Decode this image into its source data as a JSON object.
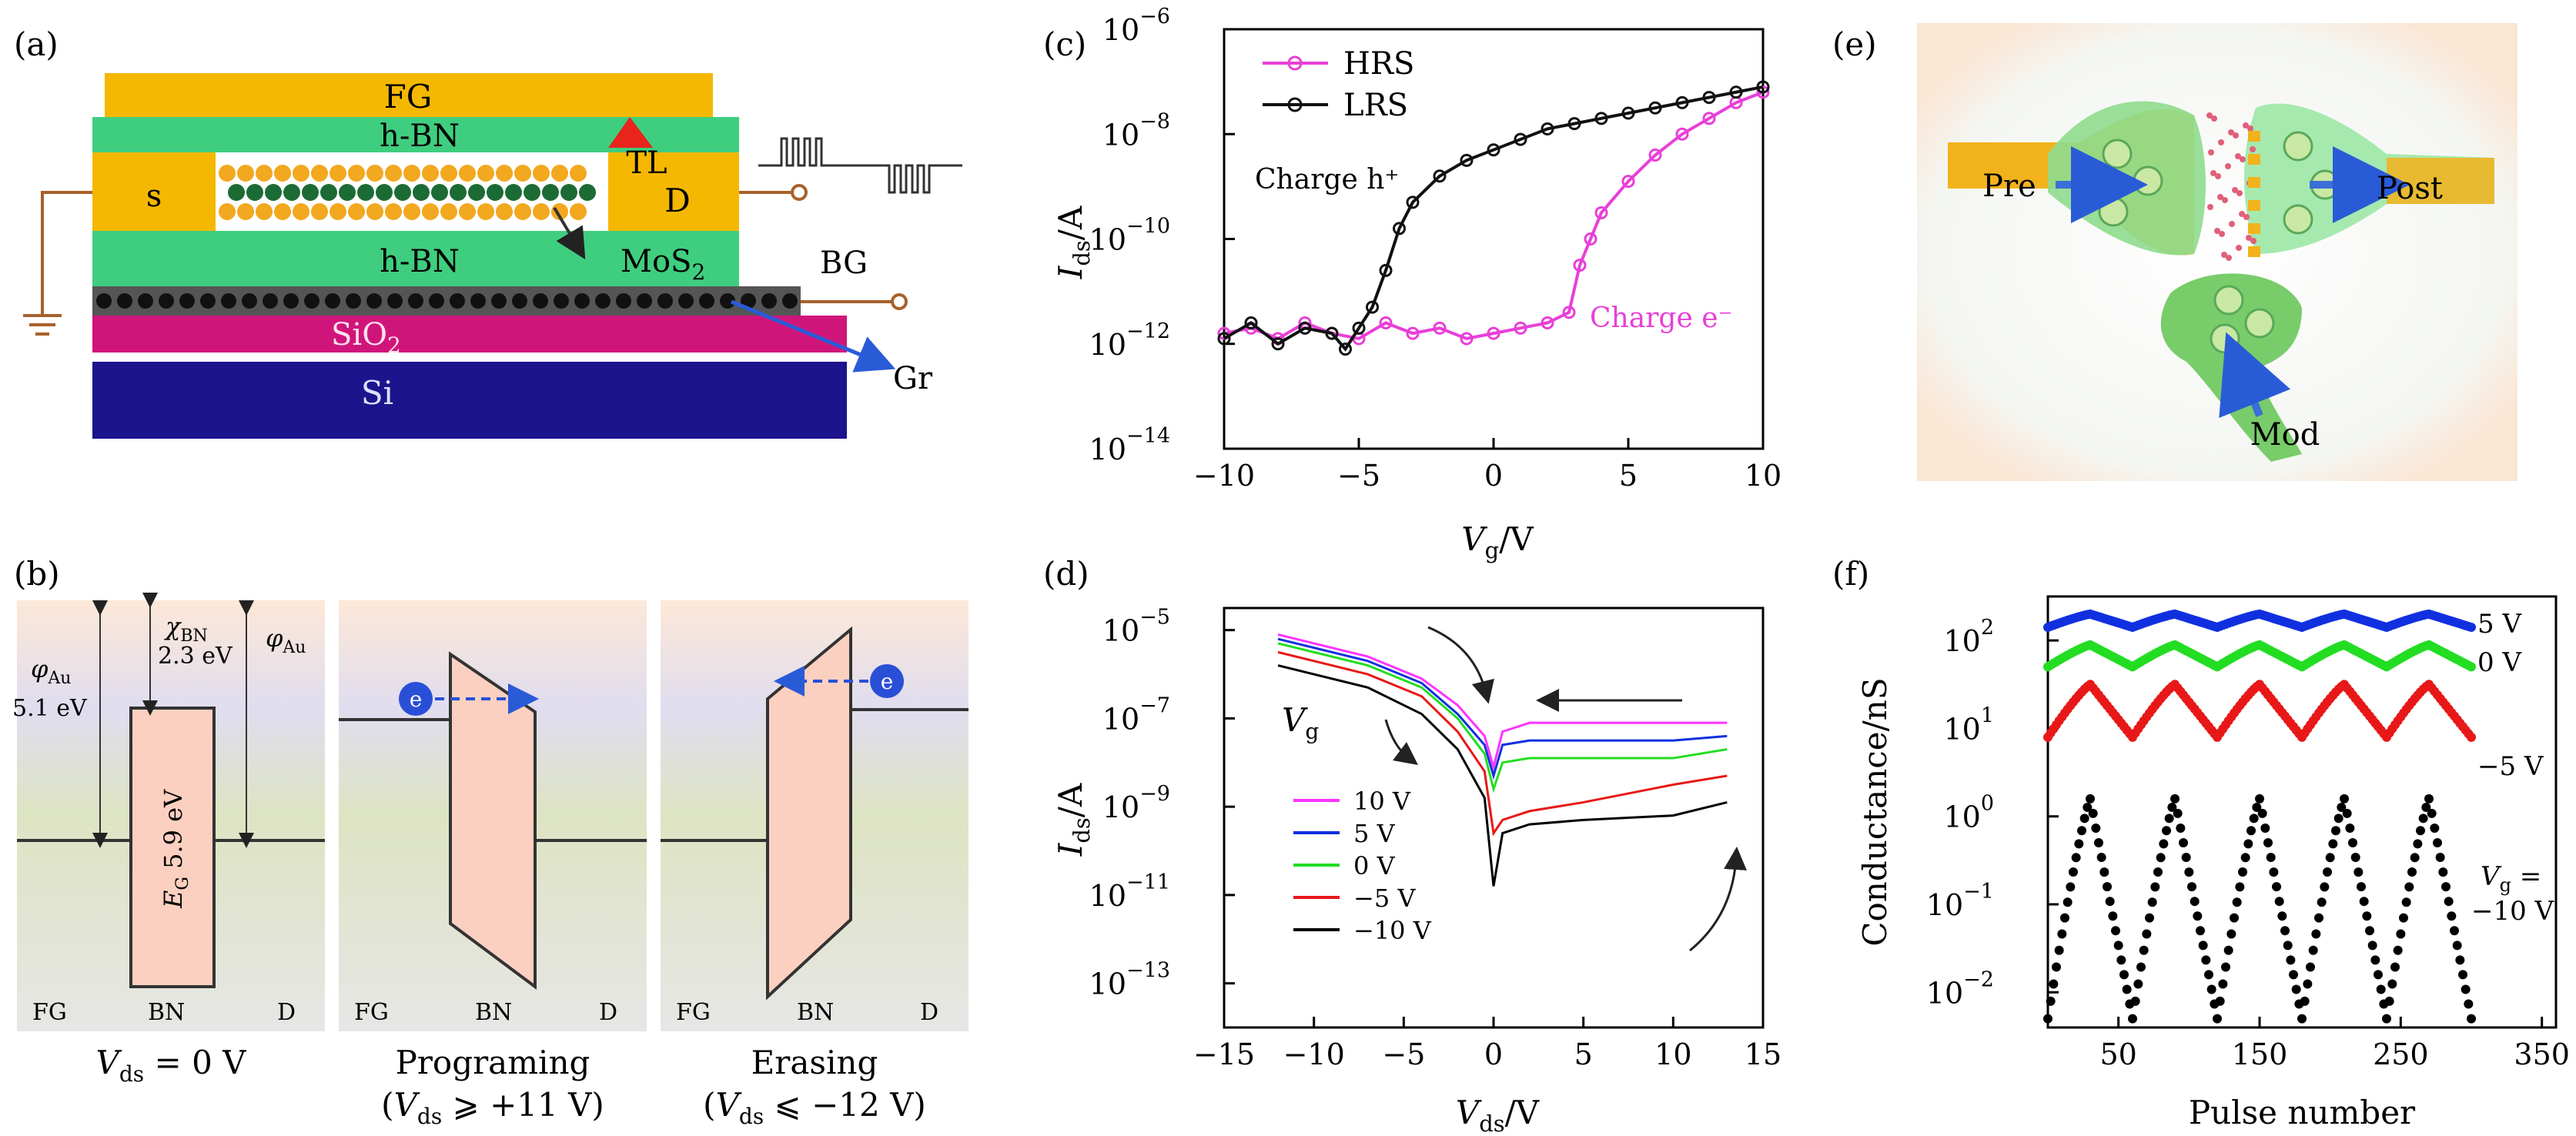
{
  "panel_labels": {
    "a": "(a)",
    "b": "(b)",
    "c": "(c)",
    "d": "(d)",
    "e": "(e)",
    "f": "(f)"
  },
  "panel_a": {
    "fg": "FG",
    "hbn_top": "h-BN",
    "hbn_bottom": "h-BN",
    "source": "s",
    "drain": "D",
    "tl": "TL",
    "mos2": "MoS",
    "mos2_sub": "2",
    "bg": "BG",
    "sio2": "SiO",
    "sio2_sub": "2",
    "si": "Si",
    "gr": "Gr"
  },
  "panel_b": {
    "phi_au": "φ",
    "phi_au_sub": "Au",
    "work_fn_value": "5.1 eV",
    "chi_bn": "χ",
    "chi_bn_sub": "BN",
    "chi_value": "2.3 eV",
    "bandgap": "E",
    "bandgap_sub": "G",
    "bandgap_value": " 5.9 eV",
    "electron": "e",
    "fg": "FG",
    "bn": "BN",
    "d": "D",
    "caption1_v": "V",
    "caption1_sub": "ds",
    "caption1_rest": " = 0 V",
    "caption2_title": "Programing",
    "caption2_line2_a": "(",
    "caption2_line2_v": "V",
    "caption2_line2_sub": "ds",
    "caption2_line2_rest": " ⩾ +11 V)",
    "caption3_title": "Erasing",
    "caption3_line2_rest": " ⩽ −12 V)"
  },
  "panel_e": {
    "pre": "Pre",
    "post": "Post",
    "mod": "Mod"
  },
  "colors": {
    "hrs": "#e83fd8",
    "lrs": "#111111",
    "v10": "#ff33ff",
    "v5": "#1030e0",
    "v0": "#22dd22",
    "vm5": "#e81818",
    "vm10": "#000000",
    "fg_gold": "#f5b800",
    "hbn_green": "#3fce7f",
    "sio2_pink": "#d0157a",
    "si_blue": "#1c148c"
  },
  "chart_data": [
    {
      "panel": "c",
      "type": "line",
      "xlabel": "V",
      "xlabel_sub": "g",
      "xlabel_unit": "/V",
      "ylabel": "I",
      "ylabel_sub": "ds",
      "ylabel_unit": "/A",
      "xlim": [
        -10,
        10
      ],
      "ylim_log10": [
        -14,
        -6
      ],
      "log_y": true,
      "xticks": [
        "−10",
        "−5",
        "0",
        "5",
        "10"
      ],
      "yticks": [
        "10",
        "10",
        "10",
        "10",
        "10"
      ],
      "ytick_exps": [
        "−14",
        "−12",
        "−10",
        "−8",
        "−6"
      ],
      "legend_placement": "top-left",
      "annotations": [
        "Charge h⁺",
        "Charge e⁻"
      ],
      "series": [
        {
          "name": "HRS",
          "x": [
            -10,
            -9,
            -8,
            -7,
            -6,
            -5,
            -4,
            -3,
            -2,
            -1,
            0,
            1,
            2,
            2.8,
            3.2,
            3.6,
            4,
            5,
            6,
            7,
            8,
            9,
            10
          ],
          "log10y": [
            -11.8,
            -11.7,
            -11.9,
            -11.6,
            -11.8,
            -11.9,
            -11.6,
            -11.8,
            -11.7,
            -11.9,
            -11.8,
            -11.7,
            -11.6,
            -11.4,
            -10.5,
            -10.0,
            -9.5,
            -8.9,
            -8.4,
            -8.0,
            -7.7,
            -7.4,
            -7.2
          ]
        },
        {
          "name": "LRS",
          "x": [
            -10,
            -9,
            -8,
            -7,
            -6,
            -5.5,
            -5,
            -4.5,
            -4,
            -3.5,
            -3,
            -2,
            -1,
            0,
            1,
            2,
            3,
            4,
            5,
            6,
            7,
            8,
            9,
            10
          ],
          "log10y": [
            -11.9,
            -11.6,
            -12.0,
            -11.7,
            -11.8,
            -12.1,
            -11.7,
            -11.3,
            -10.6,
            -9.8,
            -9.3,
            -8.8,
            -8.5,
            -8.3,
            -8.1,
            -7.9,
            -7.8,
            -7.7,
            -7.6,
            -7.5,
            -7.4,
            -7.3,
            -7.2,
            -7.1
          ]
        }
      ]
    },
    {
      "panel": "d",
      "type": "line",
      "xlabel": "V",
      "xlabel_sub": "ds",
      "xlabel_unit": "/V",
      "ylabel": "I",
      "ylabel_sub": "ds",
      "ylabel_unit": "/A",
      "xlim": [
        -15,
        15
      ],
      "ylim_log10": [
        -14,
        -4.5
      ],
      "log_y": true,
      "xticks": [
        "−15",
        "−10",
        "−5",
        "0",
        "5",
        "10",
        "15"
      ],
      "yticks": [
        "10",
        "10",
        "10",
        "10",
        "10"
      ],
      "ytick_exps": [
        "−13",
        "−11",
        "−9",
        "−7",
        "−5"
      ],
      "legend_placement": "bottom-left",
      "annotations": [
        "V"
      ],
      "annotation_sub": "g",
      "series": [
        {
          "name": "10 V",
          "x": [
            -12,
            -10,
            -7,
            -4,
            -2,
            -0.5,
            0,
            0.5,
            2,
            5,
            10,
            13
          ],
          "log10y": [
            -5.1,
            -5.3,
            -5.6,
            -6.1,
            -6.7,
            -7.4,
            -8.1,
            -7.3,
            -7.1,
            -7.1,
            -7.1,
            -7.1
          ]
        },
        {
          "name": "5 V",
          "x": [
            -12,
            -10,
            -7,
            -4,
            -2,
            -0.5,
            0,
            0.5,
            2,
            5,
            10,
            13
          ],
          "log10y": [
            -5.2,
            -5.4,
            -5.7,
            -6.2,
            -6.9,
            -7.6,
            -8.3,
            -7.6,
            -7.5,
            -7.5,
            -7.5,
            -7.4
          ]
        },
        {
          "name": "0 V",
          "x": [
            -12,
            -10,
            -7,
            -4,
            -2,
            -0.5,
            0,
            0.5,
            2,
            5,
            10,
            13
          ],
          "log10y": [
            -5.3,
            -5.5,
            -5.8,
            -6.3,
            -7.0,
            -7.8,
            -8.6,
            -8.0,
            -7.9,
            -7.9,
            -7.9,
            -7.7
          ]
        },
        {
          "name": "−5 V",
          "x": [
            -12,
            -10,
            -7,
            -4,
            -2,
            -0.5,
            0,
            0.5,
            2,
            5,
            10,
            13
          ],
          "log10y": [
            -5.5,
            -5.7,
            -6.0,
            -6.5,
            -7.3,
            -8.2,
            -9.6,
            -9.3,
            -9.1,
            -8.9,
            -8.5,
            -8.3
          ]
        },
        {
          "name": "−10 V",
          "x": [
            -12,
            -10,
            -7,
            -4,
            -2,
            -0.5,
            0,
            0.5,
            2,
            5,
            10,
            13
          ],
          "log10y": [
            -5.8,
            -6.0,
            -6.3,
            -6.9,
            -7.7,
            -8.8,
            -10.8,
            -9.6,
            -9.4,
            -9.3,
            -9.2,
            -8.9
          ]
        }
      ]
    },
    {
      "panel": "f",
      "type": "scatter",
      "xlabel": "Pulse number",
      "ylabel": "Conductance/nS",
      "xlim": [
        0,
        360
      ],
      "ylim_log10": [
        -2.4,
        2.5
      ],
      "log_y": true,
      "xticks": [
        "50",
        "150",
        "250",
        "350"
      ],
      "yticks": [
        "10",
        "10",
        "10",
        "10",
        "10"
      ],
      "ytick_exps": [
        "−2",
        "−1",
        "0",
        "1",
        "2"
      ],
      "series_labels_on_plot": true,
      "series": [
        {
          "name": "5 V",
          "period": 60,
          "base_log10": 2.15,
          "amp": 0.15
        },
        {
          "name": "0 V",
          "period": 60,
          "base_log10": 1.7,
          "amp": 0.25
        },
        {
          "name": "−5 V",
          "period": 60,
          "base_log10": 0.9,
          "amp": 0.6
        },
        {
          "name": "−10 V",
          "period": 60,
          "base_log10": -2.3,
          "amp": 2.5
        }
      ],
      "vg_label_v": "V",
      "vg_label_sub": "g",
      "vg_label_rest": " =",
      "vg_label_line2": "−10 V"
    }
  ]
}
